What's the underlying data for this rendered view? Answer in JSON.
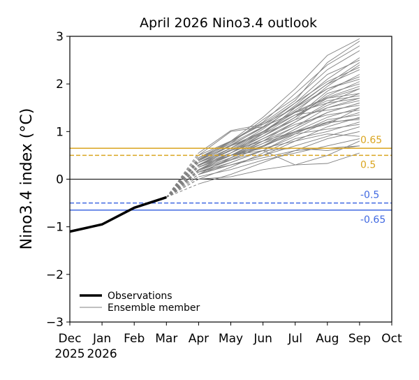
{
  "chart_data": {
    "type": "line",
    "title": "April 2026 Nino3.4 outlook",
    "xlabel": "",
    "ylabel": "Nino3.4 index (°C)",
    "ylim": [
      -3,
      3
    ],
    "yticks": [
      "−3",
      "−2",
      "−1",
      "0",
      "1",
      "2",
      "3"
    ],
    "ytick_values": [
      -3,
      -2,
      -1,
      0,
      1,
      2,
      3
    ],
    "xticks": [
      {
        "label": "Dec",
        "sub": "2025"
      },
      {
        "label": "Jan",
        "sub": "2026"
      },
      {
        "label": "Feb",
        "sub": ""
      },
      {
        "label": "Mar",
        "sub": ""
      },
      {
        "label": "Apr",
        "sub": ""
      },
      {
        "label": "May",
        "sub": ""
      },
      {
        "label": "Jun",
        "sub": ""
      },
      {
        "label": "Jul",
        "sub": ""
      },
      {
        "label": "Aug",
        "sub": ""
      },
      {
        "label": "Sep",
        "sub": ""
      },
      {
        "label": "Oct",
        "sub": ""
      }
    ],
    "grid": false,
    "legend": {
      "placement": "lower-left",
      "entries": [
        {
          "label": "Observations",
          "color": "#000000"
        },
        {
          "label": "Ensemble member",
          "color": "#808080"
        }
      ]
    },
    "observations": {
      "x": [
        "Dec",
        "Jan",
        "Feb",
        "Mar"
      ],
      "values": [
        -1.1,
        -0.95,
        -0.6,
        -0.38
      ]
    },
    "thresholds": [
      {
        "value": 0.65,
        "label": "0.65",
        "style": "solid",
        "color": "#DAA520"
      },
      {
        "value": 0.5,
        "label": "0.5",
        "style": "dashed",
        "color": "#DAA520"
      },
      {
        "value": -0.5,
        "label": "-0.5",
        "style": "dashed",
        "color": "#4169E1"
      },
      {
        "value": -0.65,
        "label": "-0.65",
        "style": "solid",
        "color": "#4169E1"
      }
    ],
    "ensemble": {
      "x": [
        "Apr",
        "May",
        "Jun",
        "Jul",
        "Aug",
        "Sep"
      ],
      "color": "#808080",
      "members": [
        [
          0.3,
          0.6,
          0.9,
          1.3,
          1.7,
          1.9
        ],
        [
          0.2,
          0.5,
          0.8,
          1.1,
          1.4,
          1.6
        ],
        [
          0.4,
          0.8,
          1.2,
          1.8,
          2.4,
          2.8
        ],
        [
          0.1,
          0.3,
          0.5,
          0.7,
          0.9,
          1.1
        ],
        [
          0.5,
          1.0,
          1.1,
          1.4,
          1.7,
          1.8
        ],
        [
          0.0,
          0.05,
          0.2,
          0.3,
          0.33,
          0.55
        ],
        [
          0.25,
          0.55,
          0.95,
          1.5,
          2.0,
          2.3
        ],
        [
          0.35,
          0.7,
          1.1,
          1.6,
          2.2,
          2.5
        ],
        [
          0.15,
          0.4,
          0.7,
          1.0,
          1.3,
          1.5
        ],
        [
          0.3,
          0.5,
          0.6,
          0.65,
          0.6,
          0.7
        ],
        [
          0.45,
          0.8,
          1.3,
          1.9,
          2.6,
          2.95
        ],
        [
          0.2,
          0.45,
          0.75,
          1.1,
          1.5,
          1.7
        ],
        [
          -0.1,
          0.1,
          0.35,
          0.6,
          0.85,
          1.0
        ],
        [
          0.3,
          0.65,
          1.0,
          1.45,
          1.9,
          2.1
        ],
        [
          0.4,
          0.75,
          1.1,
          1.4,
          1.6,
          1.7
        ],
        [
          0.1,
          0.35,
          0.6,
          0.9,
          1.2,
          1.4
        ],
        [
          0.25,
          0.5,
          0.85,
          1.2,
          1.55,
          1.8
        ],
        [
          0.35,
          0.6,
          0.9,
          1.25,
          1.8,
          2.0
        ],
        [
          0.05,
          0.2,
          0.4,
          0.55,
          0.7,
          0.85
        ],
        [
          0.2,
          0.55,
          0.9,
          1.3,
          1.75,
          2.05
        ],
        [
          0.3,
          0.6,
          0.8,
          1.0,
          1.2,
          1.25
        ],
        [
          0.4,
          0.7,
          1.0,
          1.35,
          1.45,
          1.55
        ],
        [
          0.15,
          0.3,
          0.5,
          0.8,
          1.1,
          1.3
        ],
        [
          0.5,
          0.8,
          1.15,
          1.6,
          2.05,
          2.35
        ],
        [
          0.25,
          0.5,
          0.7,
          0.95,
          1.05,
          1.15
        ],
        [
          0.1,
          0.45,
          0.8,
          1.2,
          1.6,
          1.9
        ],
        [
          0.35,
          0.65,
          1.05,
          1.55,
          2.1,
          2.55
        ],
        [
          0.2,
          0.4,
          0.6,
          0.3,
          0.5,
          0.8
        ],
        [
          0.3,
          0.55,
          0.85,
          1.15,
          1.35,
          1.45
        ],
        [
          0.0,
          0.25,
          0.55,
          0.85,
          1.0,
          1.2
        ],
        [
          0.45,
          0.75,
          1.25,
          1.7,
          2.3,
          2.7
        ],
        [
          0.2,
          0.5,
          0.65,
          0.8,
          0.95,
          0.9
        ],
        [
          0.3,
          0.6,
          0.95,
          1.35,
          1.65,
          1.75
        ],
        [
          0.15,
          0.35,
          0.6,
          0.95,
          1.25,
          1.35
        ],
        [
          0.4,
          0.7,
          0.95,
          1.25,
          1.5,
          1.65
        ],
        [
          0.25,
          0.55,
          0.9,
          1.3,
          1.85,
          2.2
        ],
        [
          0.1,
          0.3,
          0.45,
          0.6,
          0.65,
          0.7
        ],
        [
          0.35,
          0.65,
          1.0,
          1.4,
          1.95,
          2.4
        ],
        [
          0.2,
          0.45,
          0.7,
          1.05,
          1.4,
          1.6
        ],
        [
          0.3,
          0.5,
          0.75,
          1.0,
          1.15,
          1.5
        ],
        [
          0.55,
          1.02,
          1.15,
          1.5,
          1.9,
          2.15
        ],
        [
          0.42,
          0.78,
          1.18,
          1.65,
          2.45,
          2.9
        ],
        [
          0.28,
          0.62,
          0.98,
          1.42,
          1.72,
          1.95
        ],
        [
          0.18,
          0.42,
          0.68,
          0.98,
          1.18,
          1.28
        ],
        [
          0.38,
          0.72,
          1.08,
          1.52,
          2.0,
          2.45
        ]
      ]
    }
  }
}
